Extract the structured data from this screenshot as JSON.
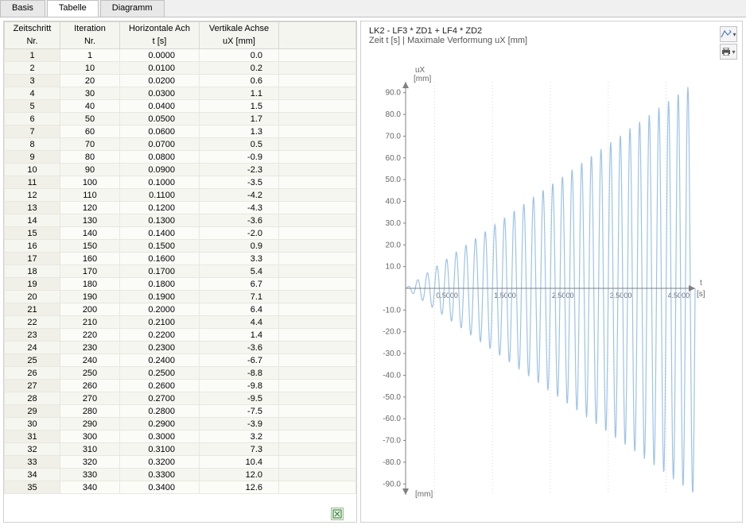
{
  "tabs": {
    "t0": "Basis",
    "t1": "Tabelle",
    "t2": "Diagramm"
  },
  "table": {
    "head1": {
      "c0": "Zeitschritt",
      "c1": "Iteration",
      "c2": "Horizontale Ach",
      "c3": "Vertikale Achse"
    },
    "head2": {
      "c0": "Nr.",
      "c1": "Nr.",
      "c2": "t [s]",
      "c3": "uX [mm]"
    },
    "rows": [
      {
        "n": "1",
        "it": "1",
        "t": "0.0000",
        "u": "0.0"
      },
      {
        "n": "2",
        "it": "10",
        "t": "0.0100",
        "u": "0.2"
      },
      {
        "n": "3",
        "it": "20",
        "t": "0.0200",
        "u": "0.6"
      },
      {
        "n": "4",
        "it": "30",
        "t": "0.0300",
        "u": "1.1"
      },
      {
        "n": "5",
        "it": "40",
        "t": "0.0400",
        "u": "1.5"
      },
      {
        "n": "6",
        "it": "50",
        "t": "0.0500",
        "u": "1.7"
      },
      {
        "n": "7",
        "it": "60",
        "t": "0.0600",
        "u": "1.3"
      },
      {
        "n": "8",
        "it": "70",
        "t": "0.0700",
        "u": "0.5"
      },
      {
        "n": "9",
        "it": "80",
        "t": "0.0800",
        "u": "-0.9"
      },
      {
        "n": "10",
        "it": "90",
        "t": "0.0900",
        "u": "-2.3"
      },
      {
        "n": "11",
        "it": "100",
        "t": "0.1000",
        "u": "-3.5"
      },
      {
        "n": "12",
        "it": "110",
        "t": "0.1100",
        "u": "-4.2"
      },
      {
        "n": "13",
        "it": "120",
        "t": "0.1200",
        "u": "-4.3"
      },
      {
        "n": "14",
        "it": "130",
        "t": "0.1300",
        "u": "-3.6"
      },
      {
        "n": "15",
        "it": "140",
        "t": "0.1400",
        "u": "-2.0"
      },
      {
        "n": "16",
        "it": "150",
        "t": "0.1500",
        "u": "0.9"
      },
      {
        "n": "17",
        "it": "160",
        "t": "0.1600",
        "u": "3.3"
      },
      {
        "n": "18",
        "it": "170",
        "t": "0.1700",
        "u": "5.4"
      },
      {
        "n": "19",
        "it": "180",
        "t": "0.1800",
        "u": "6.7"
      },
      {
        "n": "20",
        "it": "190",
        "t": "0.1900",
        "u": "7.1"
      },
      {
        "n": "21",
        "it": "200",
        "t": "0.2000",
        "u": "6.4"
      },
      {
        "n": "22",
        "it": "210",
        "t": "0.2100",
        "u": "4.4"
      },
      {
        "n": "23",
        "it": "220",
        "t": "0.2200",
        "u": "1.4"
      },
      {
        "n": "24",
        "it": "230",
        "t": "0.2300",
        "u": "-3.6"
      },
      {
        "n": "25",
        "it": "240",
        "t": "0.2400",
        "u": "-6.7"
      },
      {
        "n": "26",
        "it": "250",
        "t": "0.2500",
        "u": "-8.8"
      },
      {
        "n": "27",
        "it": "260",
        "t": "0.2600",
        "u": "-9.8"
      },
      {
        "n": "28",
        "it": "270",
        "t": "0.2700",
        "u": "-9.5"
      },
      {
        "n": "29",
        "it": "280",
        "t": "0.2800",
        "u": "-7.5"
      },
      {
        "n": "30",
        "it": "290",
        "t": "0.2900",
        "u": "-3.9"
      },
      {
        "n": "31",
        "it": "300",
        "t": "0.3000",
        "u": "3.2"
      },
      {
        "n": "32",
        "it": "310",
        "t": "0.3100",
        "u": "7.3"
      },
      {
        "n": "33",
        "it": "320",
        "t": "0.3200",
        "u": "10.4"
      },
      {
        "n": "34",
        "it": "330",
        "t": "0.3300",
        "u": "12.0"
      },
      {
        "n": "35",
        "it": "340",
        "t": "0.3400",
        "u": "12.6"
      }
    ]
  },
  "chart": {
    "title": "LK2 - LF3 * ZD1 + LF4 * ZD2",
    "subtitle": "Zeit t [s] | Maximale Verformung uX [mm]",
    "ylabel_top": "uX",
    "ylabel_top2": "[mm]",
    "ylabel_bottom": "[mm]",
    "xlabel_r1": "t",
    "xlabel_r2": "[s]",
    "ylim": [
      -95,
      95
    ],
    "yticks": [
      90,
      80,
      70,
      60,
      50,
      40,
      30,
      20,
      10,
      -10,
      -20,
      -30,
      -40,
      -50,
      -60,
      -70,
      -80,
      -90
    ],
    "xlim": [
      0,
      5.0
    ],
    "xticks": [
      {
        "v": 0.5,
        "l": "0.5000"
      },
      {
        "v": 1.5,
        "l": "1.5000"
      },
      {
        "v": 2.5,
        "l": "2.5000"
      },
      {
        "v": 3.5,
        "l": "3.5000"
      },
      {
        "v": 4.5,
        "l": "4.5000"
      }
    ],
    "line_color": "#9cc3e8",
    "axis_color": "#808080",
    "grid_color": "#d0d0d0",
    "text_color": "#666666",
    "oscillation": {
      "cycles": 30,
      "max_amp": 95
    }
  }
}
